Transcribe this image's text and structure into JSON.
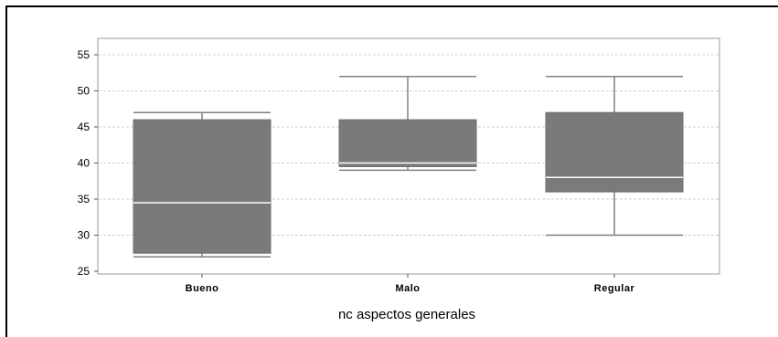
{
  "chart_data": {
    "type": "boxplot",
    "xlabel": "nc aspectos generales",
    "ylabel": "",
    "ylim": [
      25,
      56
    ],
    "yticks": [
      25,
      30,
      35,
      40,
      45,
      50,
      55
    ],
    "grid": true,
    "categories": [
      "Bueno",
      "Malo",
      "Regular"
    ],
    "boxes": [
      {
        "category": "Bueno",
        "min": 27,
        "q1": 27.5,
        "median": 34.5,
        "q3": 46,
        "max": 47
      },
      {
        "category": "Malo",
        "min": 39,
        "q1": 39.5,
        "median": 40,
        "q3": 46,
        "max": 52
      },
      {
        "category": "Regular",
        "min": 30,
        "q1": 36,
        "median": 38,
        "q3": 47,
        "max": 52
      }
    ],
    "colors": {
      "box": "#7a7a7a",
      "whisker": "#808080",
      "median": "#ffffff",
      "grid": "#d0d0d0",
      "frame": "#9a9a9a"
    }
  }
}
